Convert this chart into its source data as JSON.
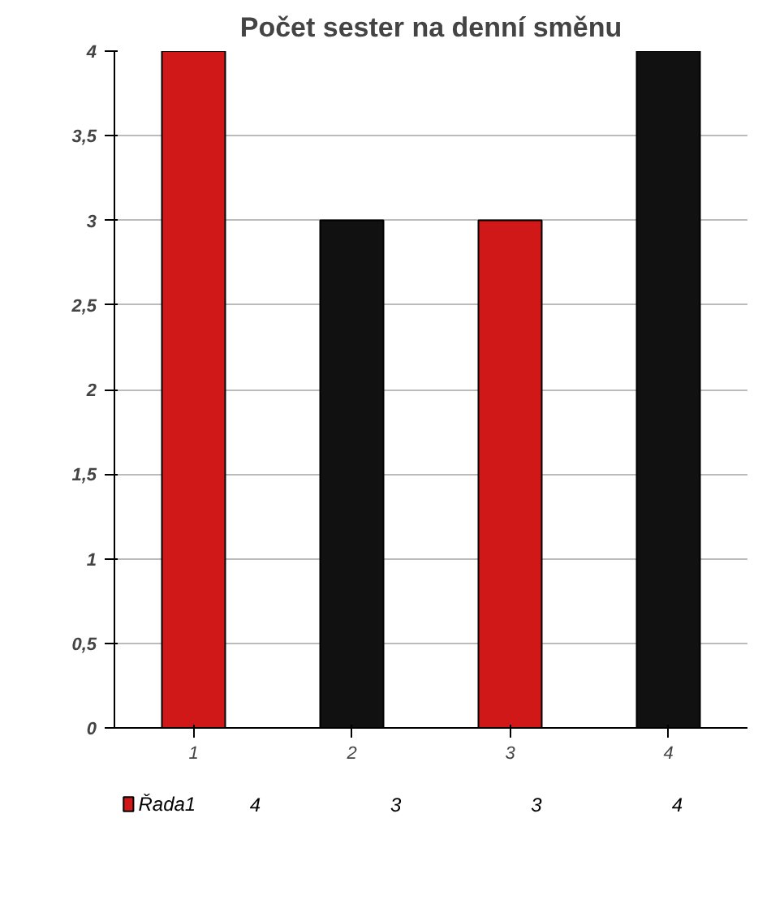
{
  "chart_data": {
    "type": "bar",
    "title": "Počet sester na denní směnu",
    "categories": [
      "1",
      "2",
      "3",
      "4"
    ],
    "series": [
      {
        "name": "Řada1",
        "color": "#d01818",
        "colors": [
          "#d01818",
          "#111111",
          "#d01818",
          "#111111"
        ],
        "values": [
          4,
          3,
          3,
          4
        ]
      }
    ],
    "ylim": [
      0,
      4
    ],
    "yticks": [
      0,
      {
        "value": 0.5,
        "label": "0,5"
      },
      1,
      {
        "value": 1.5,
        "label": "1,5"
      },
      2,
      {
        "value": 2.5,
        "label": "2,5"
      },
      3,
      {
        "value": 3.5,
        "label": "3,5"
      },
      4
    ],
    "grid": "y",
    "legend": "bottom",
    "data_labels": true
  }
}
